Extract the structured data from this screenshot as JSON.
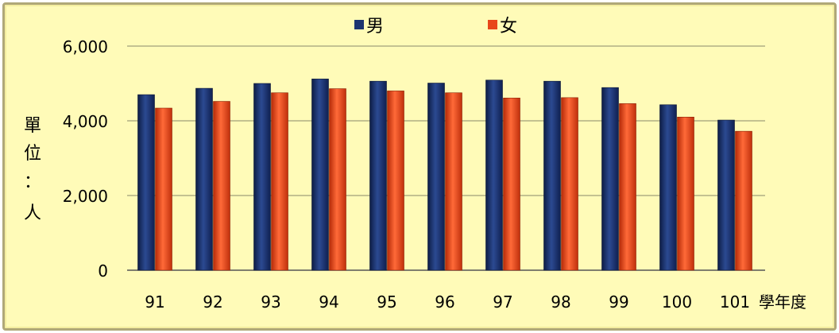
{
  "chart_data": {
    "type": "bar",
    "categories": [
      "91",
      "92",
      "93",
      "94",
      "95",
      "96",
      "97",
      "98",
      "99",
      "100",
      "101"
    ],
    "series": [
      {
        "name": "男",
        "color": "#1c3470",
        "values": [
          4700,
          4870,
          5000,
          5120,
          5060,
          5010,
          5090,
          5060,
          4890,
          4430,
          4020
        ]
      },
      {
        "name": "女",
        "color": "#e8461a",
        "values": [
          4340,
          4520,
          4750,
          4860,
          4800,
          4750,
          4610,
          4620,
          4460,
          4100,
          3720
        ]
      }
    ],
    "xlabel": "學年度",
    "ylabel_chars": [
      "單",
      "位",
      "：",
      "人"
    ],
    "yticks": [
      "0",
      "2,000",
      "4,000",
      "6,000"
    ],
    "ylim": [
      0,
      6000
    ],
    "grid": true,
    "legend": "top-center"
  }
}
